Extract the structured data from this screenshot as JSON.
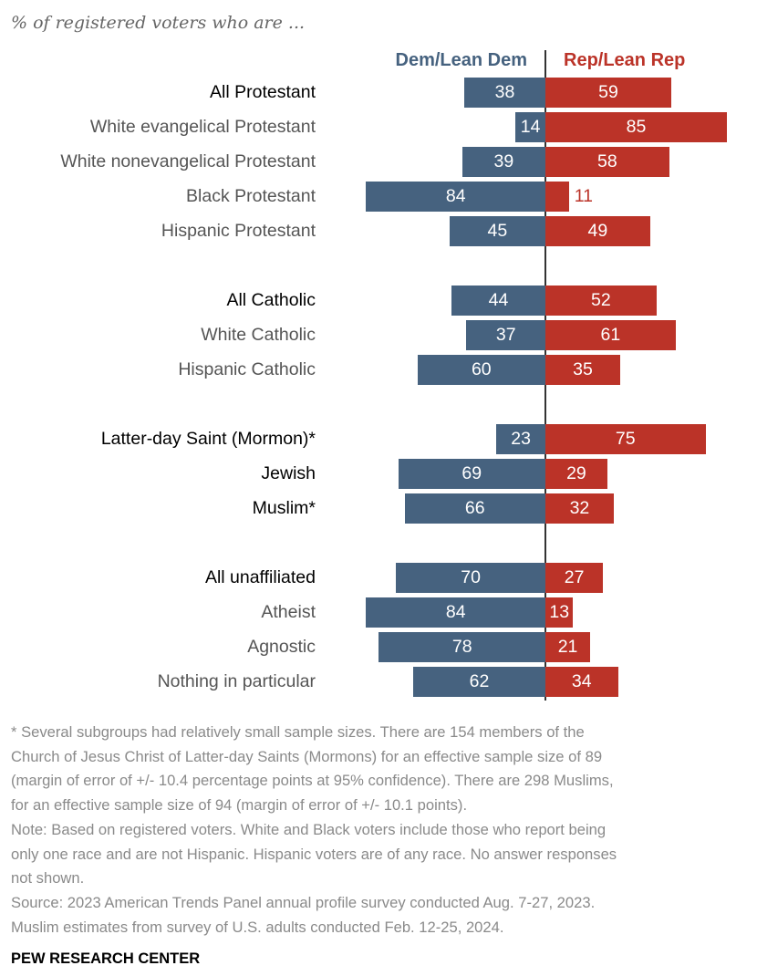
{
  "chart_data": {
    "type": "bar",
    "title": "% of registered voters who are ...",
    "series_labels": {
      "dem": "Dem/Lean Dem",
      "rep": "Rep/Lean Rep"
    },
    "colors": {
      "dem": "#46627f",
      "rep": "#bb3328"
    },
    "xlim": [
      0,
      100
    ],
    "rows": [
      {
        "label": "All Protestant",
        "dem": 38,
        "rep": 59,
        "bold": true,
        "group": 0
      },
      {
        "label": "White evangelical Protestant",
        "dem": 14,
        "rep": 85,
        "bold": false,
        "group": 0
      },
      {
        "label": "White nonevangelical Protestant",
        "dem": 39,
        "rep": 58,
        "bold": false,
        "group": 0
      },
      {
        "label": "Black Protestant",
        "dem": 84,
        "rep": 11,
        "bold": false,
        "group": 0
      },
      {
        "label": "Hispanic Protestant",
        "dem": 45,
        "rep": 49,
        "bold": false,
        "group": 0
      },
      {
        "label": "All Catholic",
        "dem": 44,
        "rep": 52,
        "bold": true,
        "group": 1
      },
      {
        "label": "White Catholic",
        "dem": 37,
        "rep": 61,
        "bold": false,
        "group": 1
      },
      {
        "label": "Hispanic Catholic",
        "dem": 60,
        "rep": 35,
        "bold": false,
        "group": 1
      },
      {
        "label": "Latter-day Saint (Mormon)*",
        "dem": 23,
        "rep": 75,
        "bold": true,
        "group": 2
      },
      {
        "label": "Jewish",
        "dem": 69,
        "rep": 29,
        "bold": true,
        "group": 2
      },
      {
        "label": "Muslim*",
        "dem": 66,
        "rep": 32,
        "bold": true,
        "group": 2
      },
      {
        "label": "All unaffiliated",
        "dem": 70,
        "rep": 27,
        "bold": true,
        "group": 3
      },
      {
        "label": "Atheist",
        "dem": 84,
        "rep": 13,
        "bold": false,
        "group": 3
      },
      {
        "label": "Agnostic",
        "dem": 78,
        "rep": 21,
        "bold": false,
        "group": 3
      },
      {
        "label": "Nothing in particular",
        "dem": 62,
        "rep": 34,
        "bold": false,
        "group": 3
      }
    ]
  },
  "notes": [
    "* Several subgroups had relatively small sample sizes. There are 154 members of the",
    "Church of Jesus Christ of Latter-day Saints (Mormons) for an effective sample size of 89",
    "(margin of error of +/- 10.4 percentage points at 95% confidence). There are 298 Muslims,",
    "for an effective sample size of 94 (margin of error of +/- 10.1 points).",
    "Note: Based on registered voters. White and Black voters include those who report being",
    "only one race and are not Hispanic. Hispanic voters are of any race. No answer responses",
    "not shown.",
    "Source: 2023 American Trends Panel annual profile survey conducted Aug. 7-27, 2023.",
    "Muslim estimates from survey of U.S. adults conducted Feb. 12-25, 2024."
  ],
  "brand": "PEW RESEARCH CENTER"
}
